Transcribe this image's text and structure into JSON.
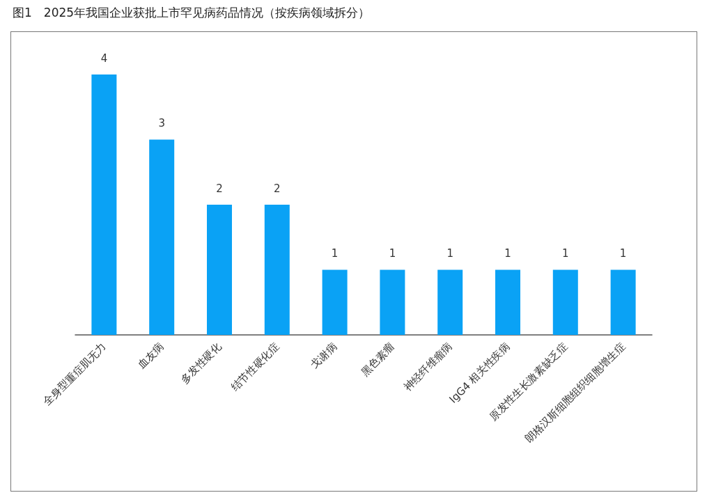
{
  "chart_data": {
    "type": "bar",
    "title": "图1　2025年我国企业获批上市罕见病药品情况（按疾病领域拆分）",
    "categories": [
      "全身型重症肌无力",
      "血友病",
      "多发性硬化",
      "结节性硬化症",
      "戈谢病",
      "黑色素瘤",
      "神经纤维瘤病",
      "IgG4 相关性疾病",
      "原发性生长激素缺乏症",
      "朗格汉斯细胞组织细胞增生症"
    ],
    "values": [
      4,
      3,
      2,
      2,
      1,
      1,
      1,
      1,
      1,
      1
    ],
    "color": "#0aa2f5",
    "data_labels": true,
    "grid": false,
    "tick_labels": "x"
  }
}
